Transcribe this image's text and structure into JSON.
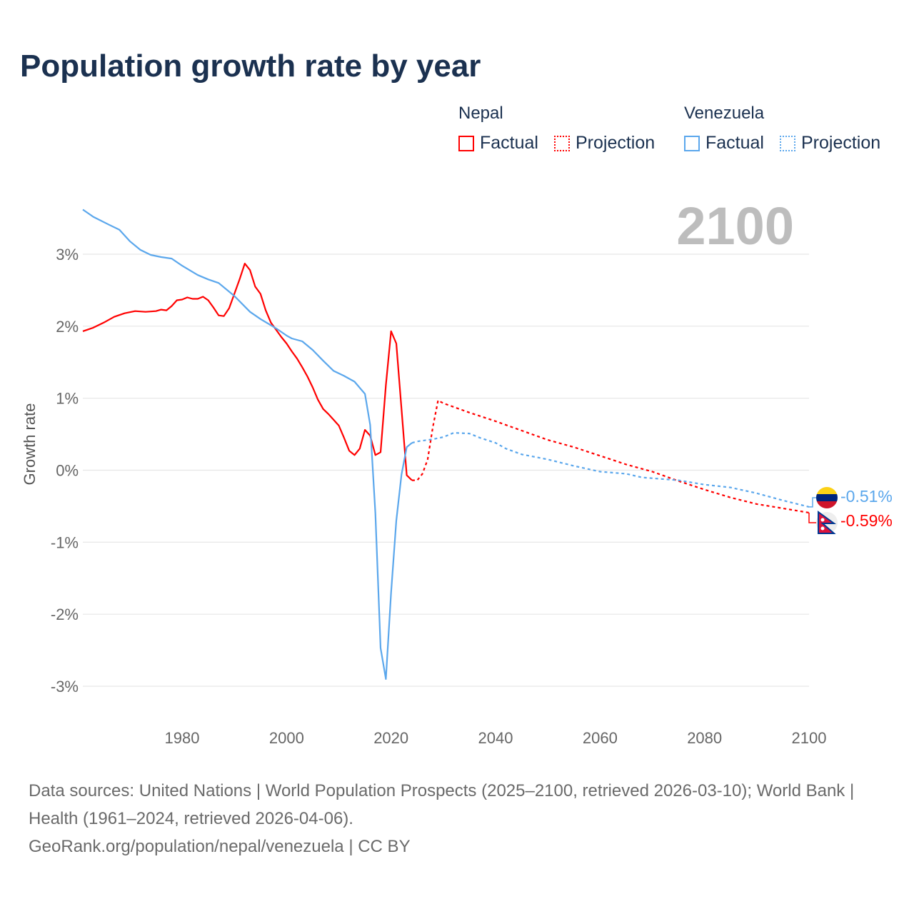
{
  "title": "Population growth rate by year",
  "current_year": "2100",
  "legend": {
    "groups": [
      {
        "country": "Nepal",
        "factual": "Factual",
        "projection": "Projection",
        "color": "#ff0000"
      },
      {
        "country": "Venezuela",
        "factual": "Factual",
        "projection": "Projection",
        "color": "#5ba7ec"
      }
    ]
  },
  "end_labels": {
    "venezuela": "-0.51%",
    "nepal": "-0.59%"
  },
  "footer": {
    "sources": "Data sources: United Nations | World Population Prospects (2025–2100, retrieved 2026-03-10); World Bank | Health (1961–2024, retrieved 2026-04-06).",
    "link": "GeoRank.org/population/nepal/venezuela | CC BY"
  },
  "chart_data": {
    "type": "line",
    "title": "Population growth rate by year",
    "xlabel": "",
    "ylabel": "Growth rate",
    "xlim": [
      1961,
      2100
    ],
    "ylim": [
      -3.4,
      3.8
    ],
    "x_ticks": [
      1980,
      2000,
      2020,
      2040,
      2060,
      2080,
      2100
    ],
    "x_tick_labels": [
      "1980",
      "2000",
      "2020",
      "2040",
      "2060",
      "2080",
      "2100"
    ],
    "y_ticks": [
      3,
      2,
      1,
      0,
      -1,
      -2,
      -3
    ],
    "y_tick_labels": [
      "3%",
      "2%",
      "1%",
      "0%",
      "-1%",
      "-2%",
      "-3%"
    ],
    "grid": true,
    "legend_position": "top-right",
    "series": [
      {
        "name": "Nepal Factual",
        "color": "#ff0000",
        "dashed": false,
        "x": [
          1961,
          1963,
          1965,
          1967,
          1969,
          1971,
          1973,
          1975,
          1976,
          1977,
          1978,
          1979,
          1980,
          1981,
          1982,
          1983,
          1984,
          1985,
          1986,
          1987,
          1988,
          1989,
          1990,
          1991,
          1992,
          1993,
          1994,
          1995,
          1996,
          1997,
          1998,
          1999,
          2000,
          2001,
          2002,
          2003,
          2004,
          2005,
          2006,
          2007,
          2008,
          2009,
          2010,
          2011,
          2012,
          2013,
          2014,
          2015,
          2016,
          2017,
          2018,
          2019,
          2020,
          2021,
          2022,
          2023,
          2024
        ],
        "y": [
          1.93,
          1.98,
          2.05,
          2.13,
          2.18,
          2.21,
          2.2,
          2.21,
          2.23,
          2.22,
          2.28,
          2.36,
          2.37,
          2.4,
          2.38,
          2.38,
          2.41,
          2.36,
          2.26,
          2.15,
          2.14,
          2.25,
          2.45,
          2.65,
          2.87,
          2.78,
          2.55,
          2.45,
          2.22,
          2.05,
          1.95,
          1.85,
          1.76,
          1.65,
          1.55,
          1.43,
          1.3,
          1.15,
          0.98,
          0.85,
          0.78,
          0.7,
          0.62,
          0.45,
          0.27,
          0.21,
          0.3,
          0.56,
          0.48,
          0.21,
          0.25,
          1.18,
          1.93,
          1.76,
          0.85,
          -0.07,
          -0.14
        ]
      },
      {
        "name": "Nepal Projection",
        "color": "#ff0000",
        "dashed": true,
        "x": [
          2024,
          2025,
          2026,
          2027,
          2028,
          2029,
          2030,
          2035,
          2040,
          2045,
          2050,
          2055,
          2060,
          2065,
          2070,
          2075,
          2080,
          2085,
          2090,
          2095,
          2100
        ],
        "y": [
          -0.14,
          -0.14,
          -0.05,
          0.15,
          0.6,
          0.97,
          0.93,
          0.8,
          0.68,
          0.55,
          0.42,
          0.32,
          0.2,
          0.08,
          -0.02,
          -0.15,
          -0.27,
          -0.38,
          -0.47,
          -0.53,
          -0.59
        ]
      },
      {
        "name": "Venezuela Factual",
        "color": "#5ba7ec",
        "dashed": false,
        "x": [
          1961,
          1963,
          1966,
          1968,
          1970,
          1972,
          1974,
          1976,
          1978,
          1980,
          1983,
          1985,
          1987,
          1990,
          1993,
          1995,
          1998,
          2000,
          2001,
          2003,
          2005,
          2007,
          2009,
          2011,
          2013,
          2015,
          2016,
          2017,
          2018,
          2019,
          2020,
          2021,
          2022,
          2023,
          2024
        ],
        "y": [
          3.62,
          3.52,
          3.41,
          3.34,
          3.18,
          3.06,
          2.99,
          2.96,
          2.94,
          2.84,
          2.71,
          2.65,
          2.6,
          2.42,
          2.2,
          2.1,
          1.97,
          1.87,
          1.83,
          1.79,
          1.67,
          1.52,
          1.38,
          1.31,
          1.23,
          1.06,
          0.63,
          -0.6,
          -2.47,
          -2.9,
          -1.7,
          -0.7,
          -0.06,
          0.32,
          0.38
        ]
      },
      {
        "name": "Venezuela Projection",
        "color": "#5ba7ec",
        "dashed": true,
        "x": [
          2024,
          2025,
          2028,
          2030,
          2032,
          2035,
          2037,
          2040,
          2042,
          2045,
          2050,
          2055,
          2060,
          2065,
          2068,
          2075,
          2080,
          2085,
          2090,
          2095,
          2100
        ],
        "y": [
          0.38,
          0.4,
          0.43,
          0.46,
          0.52,
          0.51,
          0.45,
          0.38,
          0.3,
          0.22,
          0.15,
          0.06,
          -0.02,
          -0.05,
          -0.1,
          -0.14,
          -0.2,
          -0.24,
          -0.32,
          -0.42,
          -0.51
        ]
      }
    ]
  }
}
